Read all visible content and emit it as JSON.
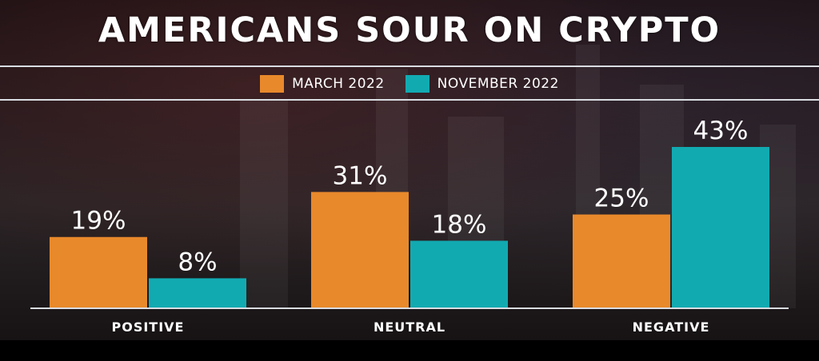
{
  "title": "AMERICANS SOUR ON CRYPTO",
  "colors": {
    "march": "#E8892B",
    "november": "#12AAB1",
    "baseline": "#d9dde2"
  },
  "legend": [
    {
      "label": "MARCH 2022",
      "color": "#E8892B"
    },
    {
      "label": "NOVEMBER 2022",
      "color": "#12AAB1"
    }
  ],
  "chart_data": {
    "type": "bar",
    "categories": [
      "POSITIVE",
      "NEUTRAL",
      "NEGATIVE"
    ],
    "series": [
      {
        "name": "MARCH 2022",
        "values": [
          19,
          31,
          25
        ],
        "labels": [
          "19%",
          "31%",
          "25%"
        ],
        "color": "#E8892B"
      },
      {
        "name": "NOVEMBER 2022",
        "values": [
          8,
          18,
          43
        ],
        "labels": [
          "8%",
          "18%",
          "43%"
        ],
        "color": "#12AAB1"
      }
    ],
    "ylim": [
      0,
      43
    ],
    "grid": false,
    "legend_position": "top-center"
  }
}
